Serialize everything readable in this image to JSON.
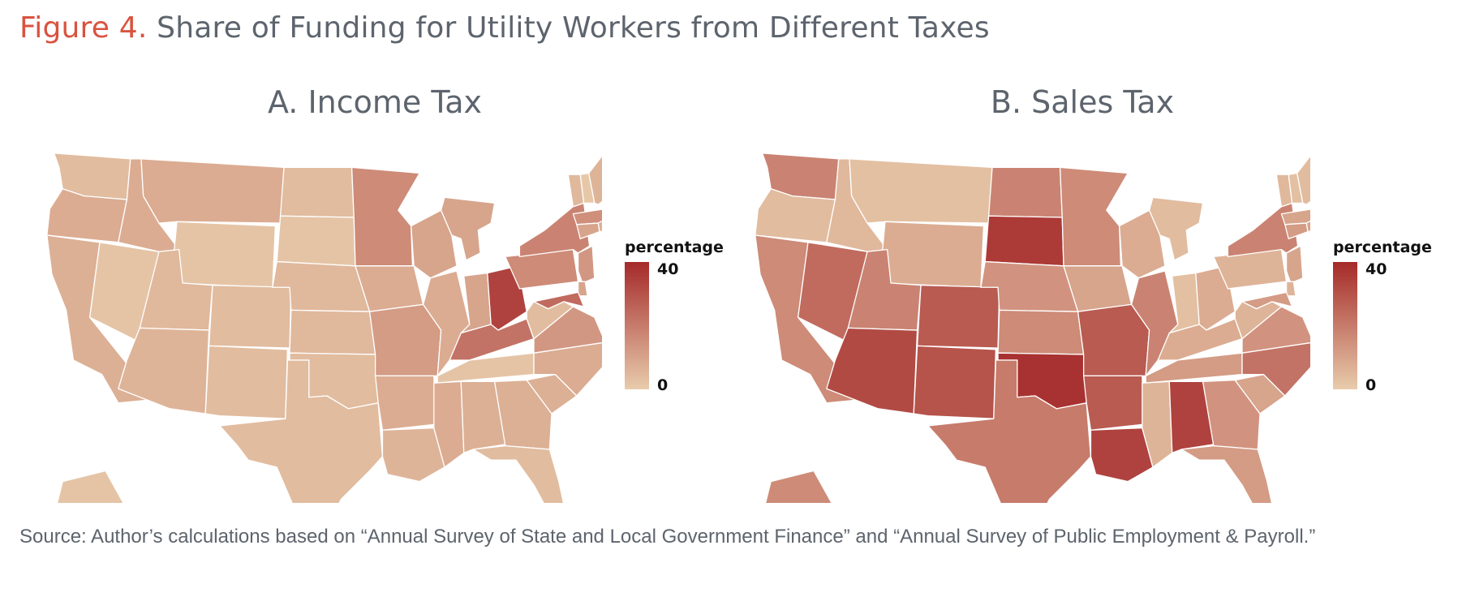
{
  "figure": {
    "number": "Figure 4.",
    "title": "Share of Funding for Utility Workers from Different Taxes"
  },
  "colors": {
    "low": "#e8ccac",
    "high": "#a52a2a",
    "title_accent": "#d9533f",
    "text": "#5d646d"
  },
  "panels": [
    {
      "title": "A. Income Tax",
      "legend": {
        "title": "percentage",
        "max": "40",
        "min": "0"
      },
      "values": {
        "WA": 4,
        "OR": 8,
        "CA": 7,
        "NV": 2,
        "ID": 8,
        "MT": 8,
        "WY": 2,
        "UT": 5,
        "AZ": 6,
        "CO": 4,
        "NM": 4,
        "ND": 4,
        "SD": 2,
        "NE": 5,
        "KS": 5,
        "OK": 4,
        "TX": 4,
        "MN": 16,
        "IA": 8,
        "MO": 12,
        "AR": 8,
        "LA": 6,
        "WI": 10,
        "IL": 8,
        "MS": 8,
        "MI": 10,
        "IN": 10,
        "OH": 34,
        "KY": 22,
        "TN": 2,
        "AL": 7,
        "GA": 7,
        "FL": 4,
        "SC": 7,
        "NC": 8,
        "VA": 13,
        "WV": 4,
        "PA": 16,
        "NY": 18,
        "ME": 6,
        "VT": 5,
        "NH": 1,
        "MA": 15,
        "RI": 7,
        "CT": 10,
        "NJ": 13,
        "DE": 10,
        "MD": 24,
        "AK": 2,
        "HI": 2
      }
    },
    {
      "title": "B. Sales Tax",
      "legend": {
        "title": "percentage",
        "max": "40",
        "min": "0"
      },
      "values": {
        "WA": 18,
        "OR": 4,
        "CA": 16,
        "NV": 24,
        "ID": 5,
        "MT": 3,
        "WY": 8,
        "UT": 18,
        "AZ": 32,
        "CO": 28,
        "NM": 30,
        "ND": 18,
        "SD": 36,
        "NE": 14,
        "KS": 16,
        "OK": 38,
        "TX": 20,
        "MN": 16,
        "IA": 10,
        "MO": 28,
        "AR": 28,
        "LA": 34,
        "WI": 8,
        "IL": 18,
        "MS": 6,
        "MI": 4,
        "IN": 3,
        "OH": 8,
        "KY": 8,
        "TN": 12,
        "AL": 34,
        "GA": 14,
        "FL": 12,
        "SC": 10,
        "NC": 22,
        "VA": 14,
        "WV": 6,
        "PA": 6,
        "NY": 18,
        "ME": 4,
        "VT": 5,
        "NH": 3,
        "MA": 10,
        "RI": 10,
        "CT": 12,
        "NJ": 10,
        "DE": 6,
        "MD": 12,
        "AK": 16,
        "HI": 8
      }
    }
  ],
  "source": "Source: Author’s calculations based on “Annual Survey of State and Local Government Finance” and “Annual Survey of Public Employment & Payroll.”"
}
